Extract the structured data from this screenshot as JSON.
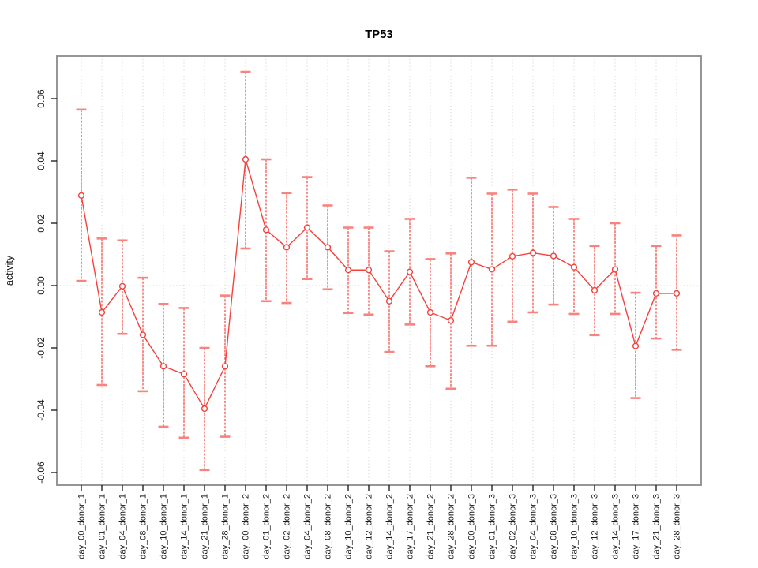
{
  "chart_data": {
    "type": "line",
    "title": "TP53",
    "ylabel": "activity",
    "xlabel": "",
    "legend_position": "none",
    "grid": "dotted vertical line at each category; dotted horizontal line at y=0",
    "ylim": [
      -0.066,
      0.072
    ],
    "yticks": [
      -0.06,
      -0.04,
      -0.02,
      0,
      0.02,
      0.04,
      0.06
    ],
    "ytick_labels": [
      "-0.06",
      "-0.04",
      "-0.02",
      "0.00",
      "0.02",
      "0.04",
      "0.06"
    ],
    "categories": [
      "day_00_donor_1",
      "day_01_donor_1",
      "day_04_donor_1",
      "day_08_donor_1",
      "day_10_donor_1",
      "day_14_donor_1",
      "day_21_donor_1",
      "day_28_donor_1",
      "day_00_donor_2",
      "day_01_donor_2",
      "day_02_donor_2",
      "day_04_donor_2",
      "day_08_donor_2",
      "day_10_donor_2",
      "day_12_donor_2",
      "day_14_donor_2",
      "day_17_donor_2",
      "day_21_donor_2",
      "day_28_donor_2",
      "day_00_donor_3",
      "day_01_donor_3",
      "day_02_donor_3",
      "day_04_donor_3",
      "day_08_donor_3",
      "day_10_donor_3",
      "day_12_donor_3",
      "day_14_donor_3",
      "day_17_donor_3",
      "day_21_donor_3",
      "day_28_donor_3"
    ],
    "series": [
      {
        "name": "TP53 activity",
        "marker": "open-circle",
        "values": [
          0.0289,
          -0.0086,
          -0.0002,
          -0.0158,
          -0.0259,
          -0.0284,
          -0.0395,
          -0.0259,
          0.0405,
          0.0179,
          0.0123,
          0.0186,
          0.0123,
          0.005,
          0.005,
          -0.005,
          0.0044,
          -0.0086,
          -0.0112,
          0.0075,
          0.0052,
          0.0094,
          0.0105,
          0.0095,
          0.0059,
          -0.0015,
          0.0052,
          -0.0194,
          -0.0025,
          -0.0025
        ],
        "error_high": [
          0.0565,
          0.0151,
          0.0145,
          0.0025,
          -0.0059,
          -0.0072,
          -0.02,
          -0.0032,
          0.0686,
          0.0405,
          0.0297,
          0.0348,
          0.0257,
          0.0186,
          0.0186,
          0.011,
          0.0214,
          0.0085,
          0.0103,
          0.0346,
          0.0295,
          0.0308,
          0.0295,
          0.0252,
          0.0214,
          0.0127,
          0.02,
          -0.0023,
          0.0127,
          0.0161
        ],
        "error_low": [
          0.0015,
          -0.0319,
          -0.0155,
          -0.0339,
          -0.0453,
          -0.0488,
          -0.0592,
          -0.0485,
          0.0119,
          -0.005,
          -0.0056,
          0.0021,
          -0.0012,
          -0.0088,
          -0.0093,
          -0.0213,
          -0.0125,
          -0.0259,
          -0.0331,
          -0.0193,
          -0.0193,
          -0.0116,
          -0.0086,
          -0.0061,
          -0.0091,
          -0.0159,
          -0.0091,
          -0.0361,
          -0.017,
          -0.0206
        ]
      }
    ],
    "colors": {
      "series_line": "#f5413c",
      "marker_stroke": "#f5413c",
      "marker_fill": "#ffffff",
      "error_bar": "#f4524d",
      "error_cap": "#f8837e",
      "gridline": "#c9c9c9",
      "plot_border": "#8a8a8a",
      "tick": "#000000",
      "tick_label": "#1a1a1a"
    }
  }
}
